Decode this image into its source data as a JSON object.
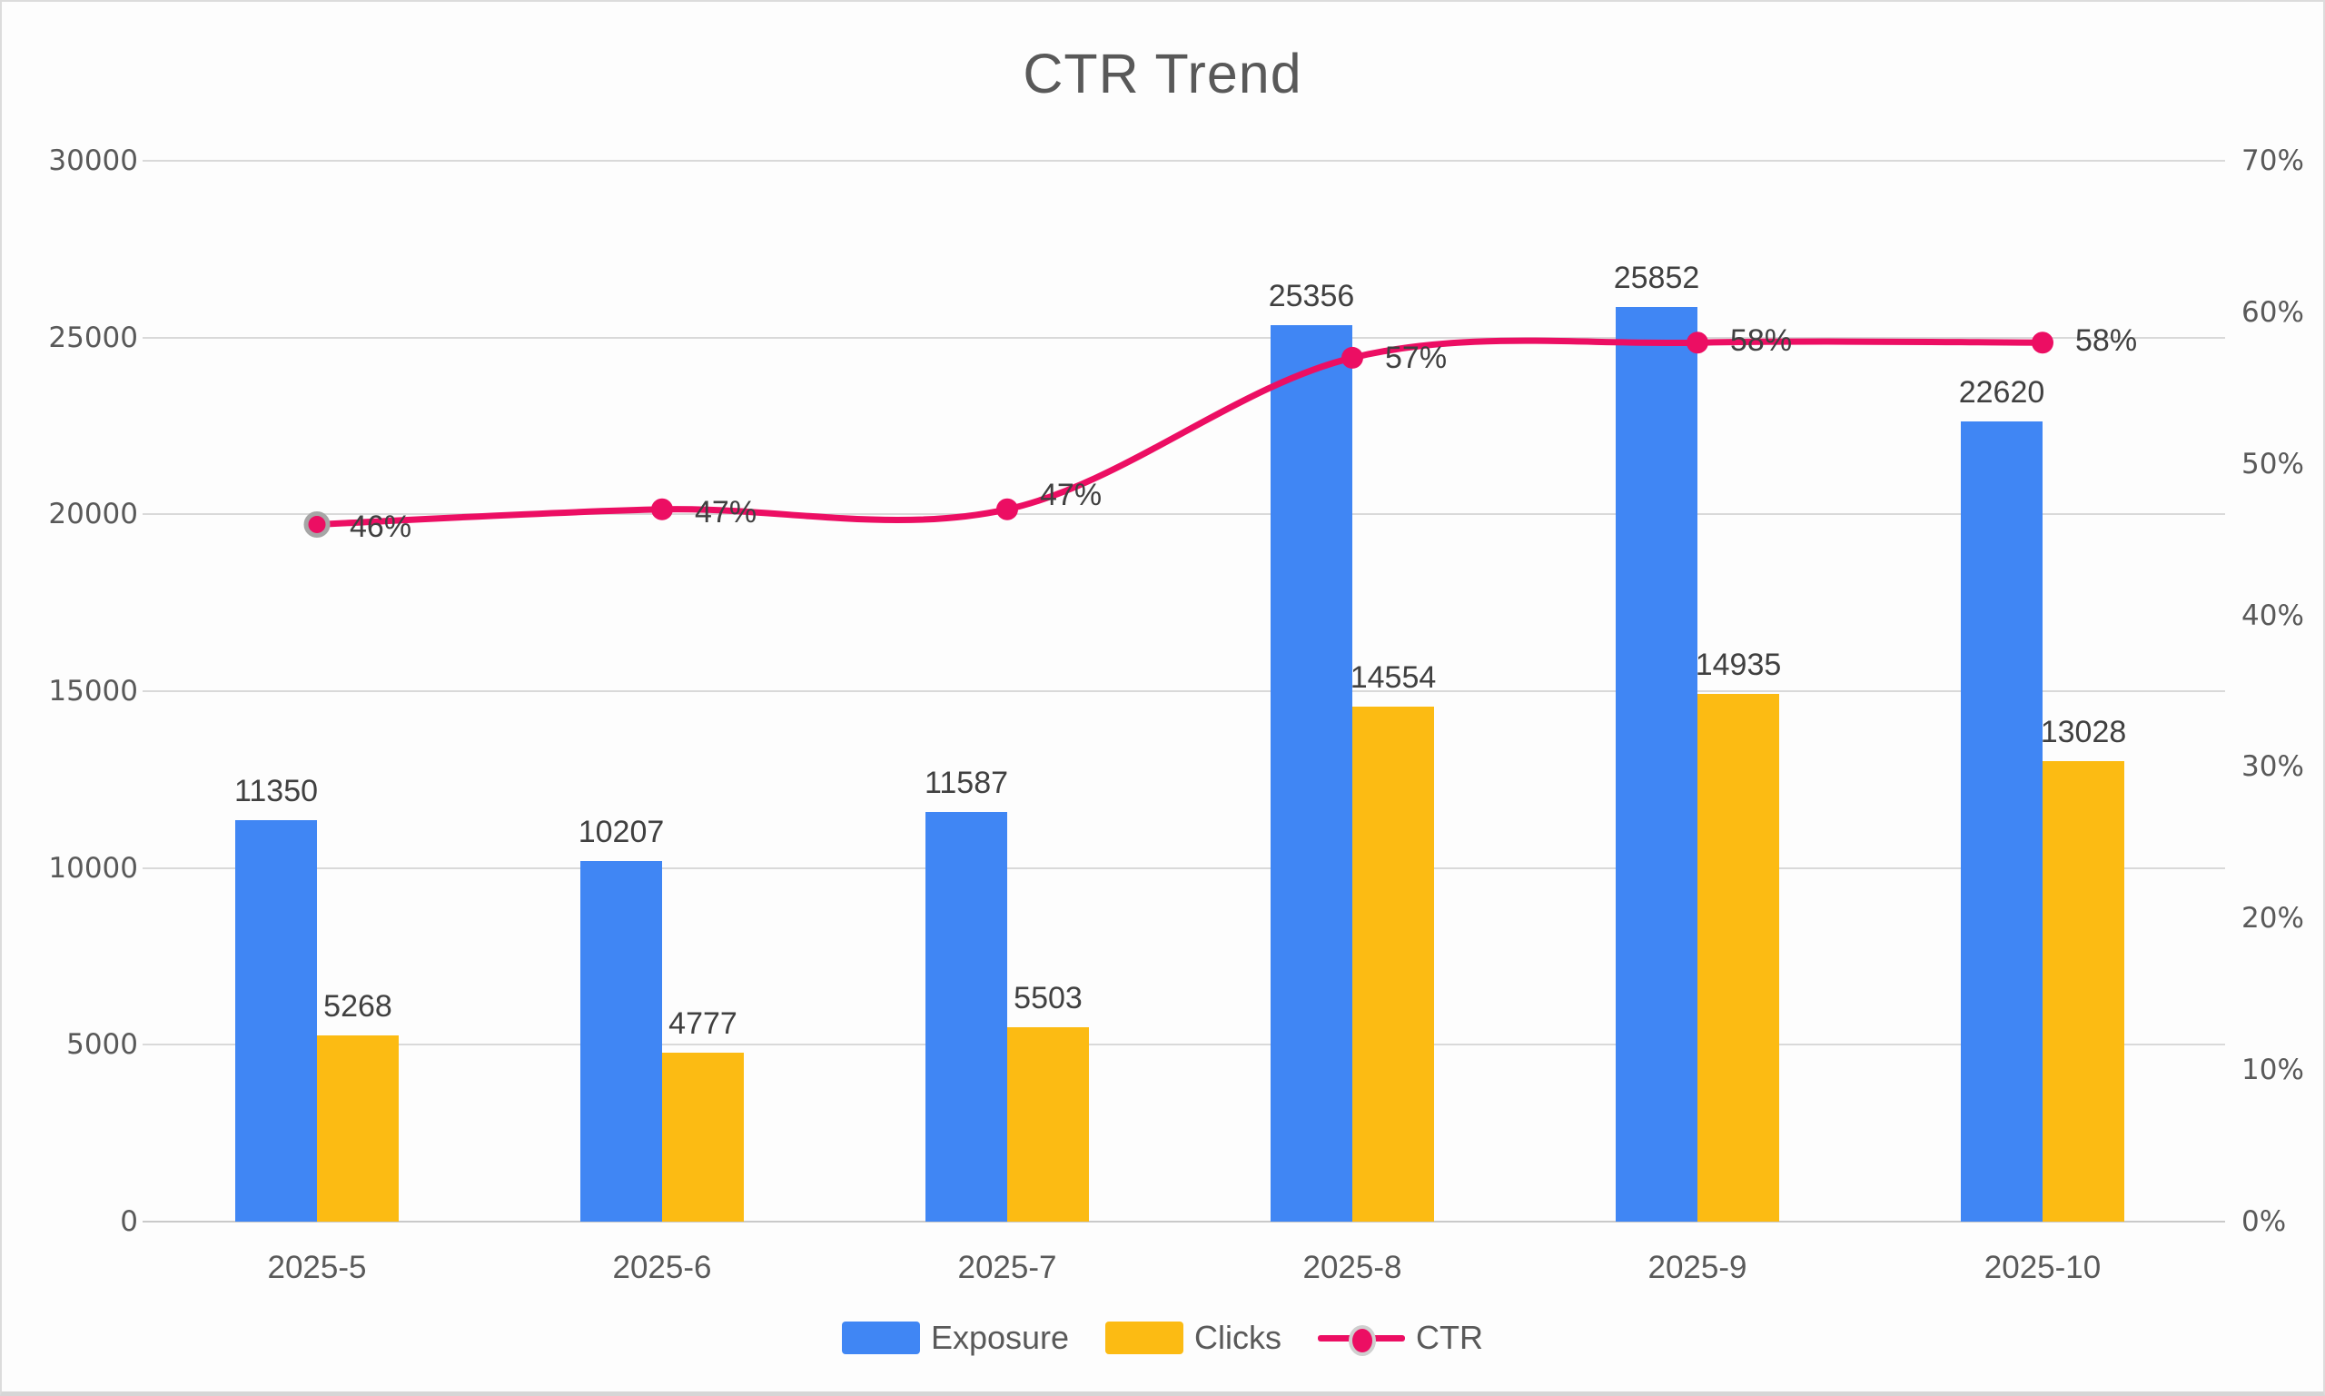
{
  "title": "CTR Trend",
  "chart_data": {
    "type": "bar",
    "title": "CTR Trend",
    "categories": [
      "2025-5",
      "2025-6",
      "2025-7",
      "2025-8",
      "2025-9",
      "2025-10"
    ],
    "series": [
      {
        "name": "Exposure",
        "type": "bar",
        "axis": "left",
        "color": "#4086F4",
        "values": [
          11350,
          10207,
          11587,
          25356,
          25852,
          22620
        ]
      },
      {
        "name": "Clicks",
        "type": "bar",
        "axis": "left",
        "color": "#FCBB13",
        "values": [
          5268,
          4777,
          5503,
          14554,
          14935,
          13028
        ]
      },
      {
        "name": "CTR",
        "type": "line",
        "axis": "right",
        "color": "#EC0E63",
        "values": [
          46,
          47,
          47,
          57,
          58,
          58
        ],
        "labels": [
          "46%",
          "47%",
          "47%",
          "57%",
          "58%",
          "58%"
        ]
      }
    ],
    "left_axis": {
      "min": 0,
      "max": 30000,
      "ticks": [
        "30000",
        "25000",
        "20000",
        "15000",
        "10000",
        "5000",
        "0"
      ]
    },
    "right_axis": {
      "min": "0%",
      "max": "70%",
      "ticks": [
        "70%",
        "60%",
        "50%",
        "40%",
        "30%",
        "20%",
        "10%",
        "0%"
      ]
    },
    "grid": true,
    "legend_position": "bottom",
    "highlighted_point_index": 0
  },
  "colors": {
    "exposure": "#4086F4",
    "clicks": "#FCBB13",
    "ctr": "#EC0E63",
    "grid": "#D9D9D9",
    "axis_text": "#595959",
    "label_text": "#404040",
    "background": "#FDFDFD",
    "border": "#DCDCDC",
    "marker_ring": "#A6A6A6"
  }
}
